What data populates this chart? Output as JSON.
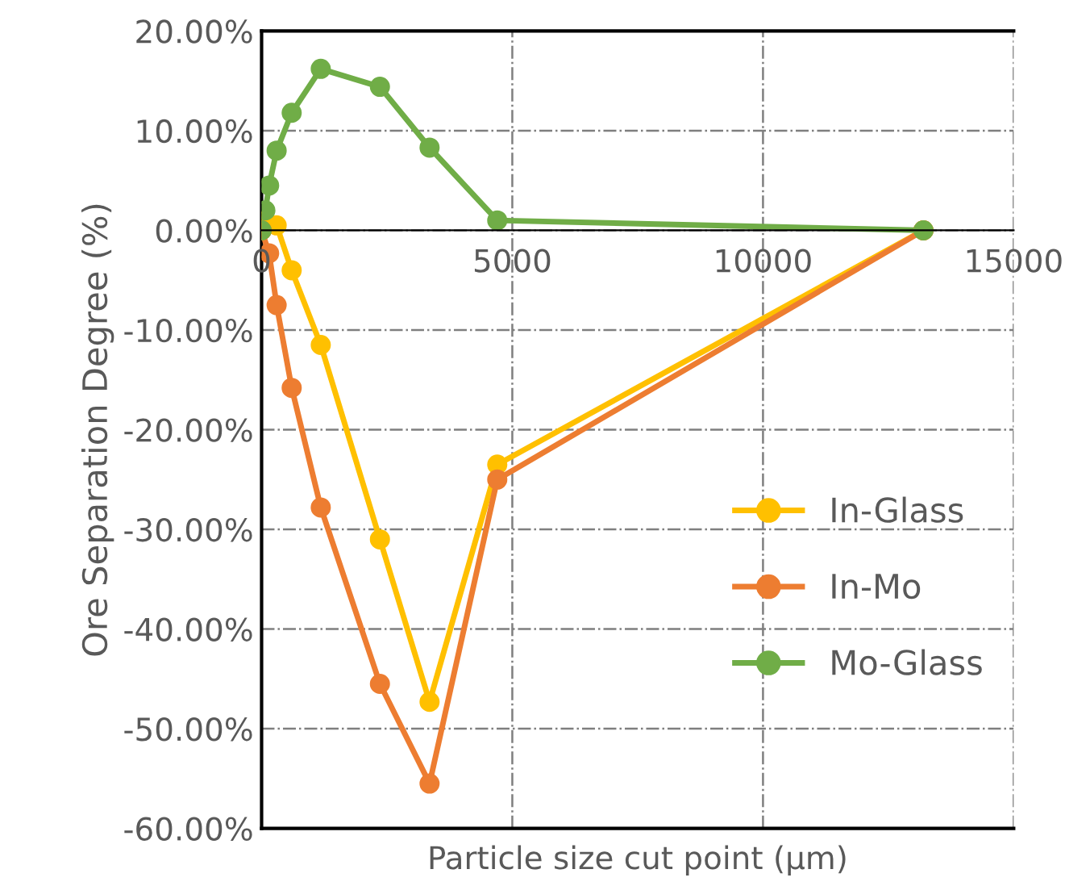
{
  "chart_data": {
    "type": "line",
    "xlabel": "Particle size cut point (µm)",
    "ylabel": "Ore Separation Degree (%)",
    "x": [
      0,
      75,
      150,
      300,
      600,
      1180,
      2360,
      3350,
      4700,
      13200
    ],
    "series": [
      {
        "name": "In-Glass",
        "color": "#ffc000",
        "values": [
          0,
          1.0,
          null,
          0.5,
          -4,
          -11.5,
          -31,
          -47.3,
          -23.5,
          0
        ]
      },
      {
        "name": "In-Mo",
        "color": "#ed7d31",
        "values": [
          0,
          null,
          -2.3,
          -7.5,
          -15.8,
          -27.8,
          -45.5,
          -55.5,
          -25,
          0
        ]
      },
      {
        "name": "Mo-Glass",
        "color": "#70ad47",
        "values": [
          0,
          2.0,
          4.5,
          8.0,
          11.8,
          16.2,
          14.4,
          8.3,
          1.0,
          0
        ]
      }
    ],
    "xlim": [
      0,
      15000
    ],
    "xticks": [
      0,
      5000,
      10000,
      15000
    ],
    "ylim": [
      -60,
      20
    ],
    "yticks": [
      {
        "value": 20,
        "label": "20.00%"
      },
      {
        "value": 10,
        "label": "10.00%"
      },
      {
        "value": 0,
        "label": "0.00%"
      },
      {
        "value": -10,
        "label": "-10.00%"
      },
      {
        "value": -20,
        "label": "-20.00%"
      },
      {
        "value": -30,
        "label": "-30.00%"
      },
      {
        "value": -40,
        "label": "-40.00%"
      },
      {
        "value": -50,
        "label": "-50.00%"
      },
      {
        "value": -60,
        "label": "-60.00%"
      }
    ],
    "grid": true,
    "legend": "right",
    "marker": "circle",
    "line_style": "solid"
  }
}
